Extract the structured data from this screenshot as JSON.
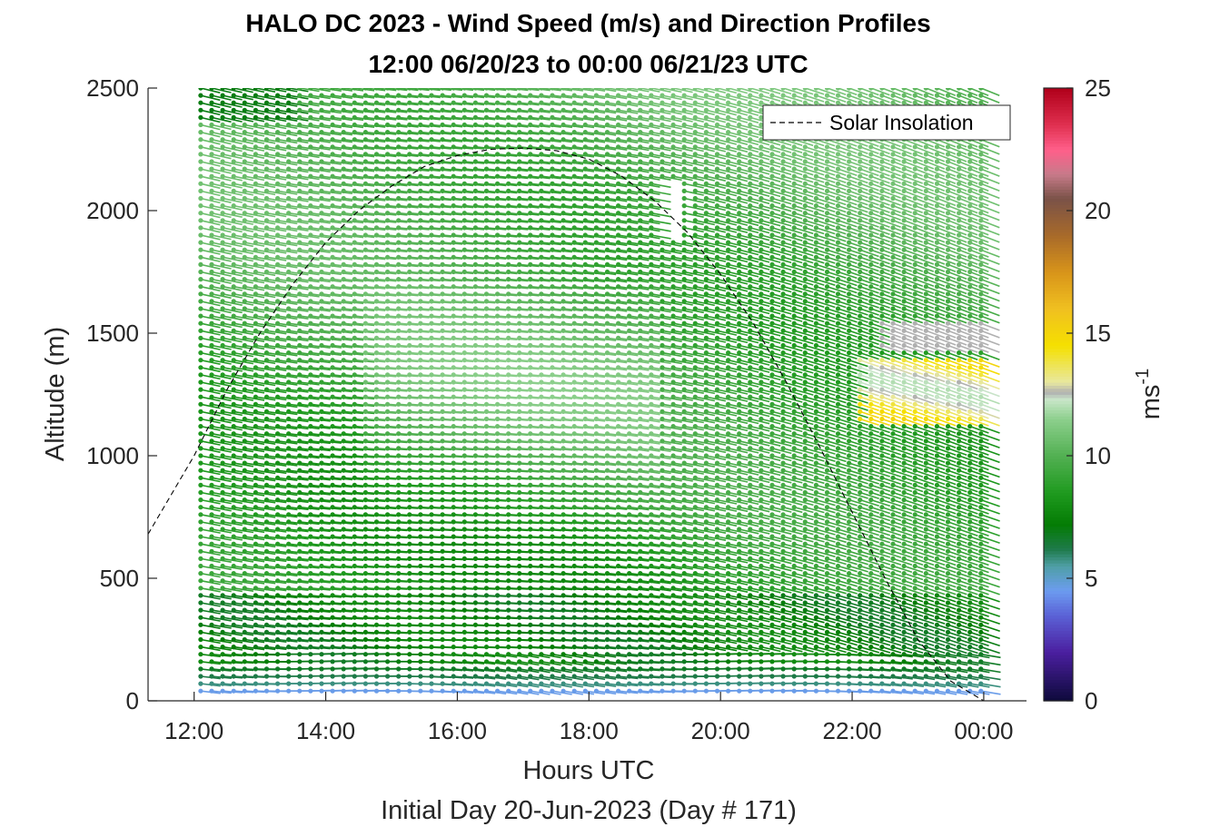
{
  "chart_data": {
    "type": "wind-barb-profile",
    "title": "HALO DC 2023 - Wind Speed (m/s) and Direction Profiles",
    "subtitle": "12:00 06/20/23 to 00:00 06/21/23  UTC",
    "xlabel": "Hours UTC",
    "xlabel_secondary": "Initial Day 20-Jun-2023 (Day # 171)",
    "ylabel": "Altitude (m)",
    "x_ticks": [
      "12:00",
      "14:00",
      "16:00",
      "18:00",
      "20:00",
      "22:00",
      "00:00"
    ],
    "x_tick_hours": [
      12,
      14,
      16,
      18,
      20,
      22,
      24
    ],
    "xlim_hours": [
      11.3,
      24.65
    ],
    "y_ticks": [
      "0",
      "500",
      "1000",
      "1500",
      "2000",
      "2500"
    ],
    "y_tick_values": [
      0,
      500,
      1000,
      1500,
      2000,
      2500
    ],
    "ylim": [
      0,
      2500
    ],
    "time_range_hours": [
      12.1,
      24.0
    ],
    "time_step_hours": 0.167,
    "altitude_range_m": [
      40,
      2500
    ],
    "altitude_step_m": 30,
    "legend": {
      "label": "Solar Insolation",
      "location": "top-right"
    },
    "solar_insolation": {
      "hours": [
        11.3,
        12,
        12.5,
        13,
        13.5,
        14,
        14.5,
        15,
        15.5,
        16,
        16.5,
        17,
        17.5,
        18,
        18.5,
        19,
        19.5,
        20,
        20.5,
        21,
        21.5,
        22,
        22.5,
        23,
        23.5,
        24,
        24.3,
        24.65
      ],
      "altitude_m": [
        680,
        1000,
        1270,
        1500,
        1700,
        1870,
        2000,
        2100,
        2180,
        2225,
        2250,
        2255,
        2245,
        2210,
        2140,
        2040,
        1910,
        1740,
        1540,
        1300,
        1040,
        770,
        500,
        250,
        80,
        0,
        0,
        0
      ]
    },
    "speed_profile_note": "wind speed in m/s, mostly 7-12 m/s, light winds (3-5 m/s) near surface, 13-16 m/s around 1150-1400 m after 22:00",
    "colorbar": {
      "label": "ms-1",
      "range": [
        0,
        25
      ],
      "ticks": [
        "0",
        "5",
        "10",
        "15",
        "20",
        "25"
      ],
      "tick_values": [
        0,
        5,
        10,
        15,
        20,
        25
      ],
      "stops": [
        {
          "value": 0,
          "color": "#0d0a3a"
        },
        {
          "value": 2,
          "color": "#4b1fa0"
        },
        {
          "value": 3.5,
          "color": "#5b62d6"
        },
        {
          "value": 4.5,
          "color": "#6c9cf0"
        },
        {
          "value": 5.5,
          "color": "#4f9fa6"
        },
        {
          "value": 6.2,
          "color": "#1e7a4a"
        },
        {
          "value": 7.2,
          "color": "#047c04"
        },
        {
          "value": 8.5,
          "color": "#1f9a1f"
        },
        {
          "value": 10,
          "color": "#52b052"
        },
        {
          "value": 11.5,
          "color": "#8ccf8c"
        },
        {
          "value": 12.3,
          "color": "#c9e6c9"
        },
        {
          "value": 12.6,
          "color": "#b0b0b0"
        },
        {
          "value": 13,
          "color": "#e8e8a0"
        },
        {
          "value": 14.5,
          "color": "#f5e000"
        },
        {
          "value": 16,
          "color": "#f0c020"
        },
        {
          "value": 17.5,
          "color": "#d8941a"
        },
        {
          "value": 19,
          "color": "#a86a2a"
        },
        {
          "value": 20.5,
          "color": "#7a5248"
        },
        {
          "value": 21.5,
          "color": "#c87a8a"
        },
        {
          "value": 22.5,
          "color": "#ff5f8a"
        },
        {
          "value": 23.5,
          "color": "#e03050"
        },
        {
          "value": 25,
          "color": "#b0001a"
        }
      ]
    }
  }
}
